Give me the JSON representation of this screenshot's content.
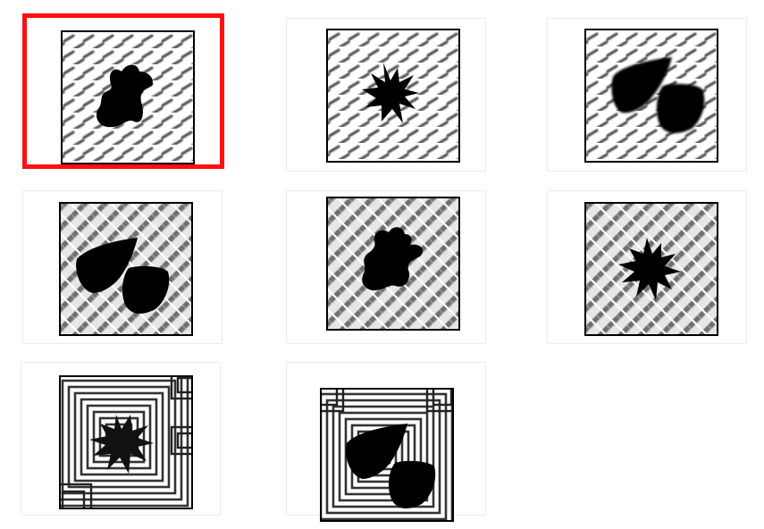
{
  "grid": {
    "selected_index": 0,
    "selection_color": "#ff1010",
    "items": [
      {
        "pattern": "dashes",
        "shape": "blob"
      },
      {
        "pattern": "dashes",
        "shape": "star"
      },
      {
        "pattern": "dashes",
        "shape": "two-rocks"
      },
      {
        "pattern": "lattice",
        "shape": "two-rocks"
      },
      {
        "pattern": "lattice",
        "shape": "blob"
      },
      {
        "pattern": "lattice",
        "shape": "star"
      },
      {
        "pattern": "squares",
        "shape": "star"
      },
      {
        "pattern": "squares",
        "shape": "two-rocks"
      }
    ]
  }
}
